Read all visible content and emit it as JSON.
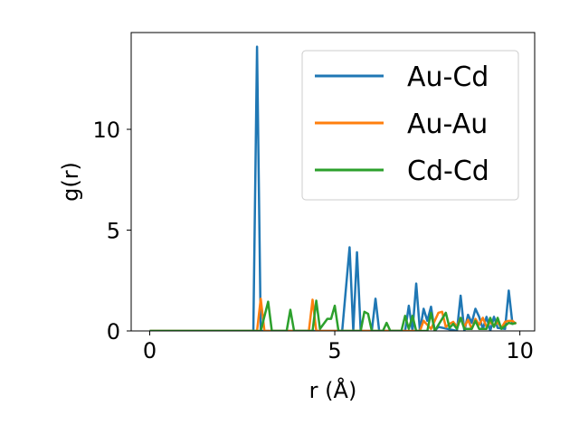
{
  "chart_data": {
    "type": "line",
    "title": "",
    "xlabel": "r (Å)",
    "ylabel": "g(r)",
    "xlim": [
      -0.5,
      10.4
    ],
    "ylim": [
      0,
      14.8
    ],
    "xticks": [
      0,
      5,
      10
    ],
    "yticks": [
      0,
      5,
      10
    ],
    "grid": false,
    "legend_position": "top-right",
    "series": [
      {
        "name": "Au-Cd",
        "color": "#1f77b4",
        "points": [
          [
            0,
            0
          ],
          [
            2.8,
            0
          ],
          [
            2.9,
            14.1
          ],
          [
            3.0,
            0
          ],
          [
            5.2,
            0
          ],
          [
            5.4,
            4.15
          ],
          [
            5.5,
            0
          ],
          [
            5.6,
            3.9
          ],
          [
            5.7,
            0
          ],
          [
            6.0,
            0
          ],
          [
            6.1,
            1.6
          ],
          [
            6.2,
            0
          ],
          [
            6.9,
            0
          ],
          [
            7.0,
            1.25
          ],
          [
            7.1,
            0
          ],
          [
            7.2,
            2.35
          ],
          [
            7.3,
            0
          ],
          [
            7.4,
            1.1
          ],
          [
            7.5,
            0.5
          ],
          [
            7.6,
            1.2
          ],
          [
            7.7,
            0
          ],
          [
            7.8,
            0.2
          ],
          [
            8.3,
            0
          ],
          [
            8.4,
            1.75
          ],
          [
            8.5,
            0
          ],
          [
            8.6,
            0.8
          ],
          [
            8.7,
            0.4
          ],
          [
            8.8,
            1.1
          ],
          [
            8.9,
            0.7
          ],
          [
            9.0,
            0.1
          ],
          [
            9.1,
            0.7
          ],
          [
            9.2,
            0
          ],
          [
            9.3,
            0.7
          ],
          [
            9.4,
            0.15
          ],
          [
            9.6,
            0.1
          ],
          [
            9.7,
            2.0
          ],
          [
            9.8,
            0.35
          ],
          [
            9.9,
            0.4
          ]
        ]
      },
      {
        "name": "Au-Au",
        "color": "#ff7f0e",
        "points": [
          [
            0,
            0
          ],
          [
            2.9,
            0
          ],
          [
            3.0,
            1.6
          ],
          [
            3.1,
            0
          ],
          [
            4.3,
            0
          ],
          [
            4.4,
            1.55
          ],
          [
            4.5,
            0
          ],
          [
            7.3,
            0
          ],
          [
            7.4,
            0.5
          ],
          [
            7.5,
            0.3
          ],
          [
            7.6,
            0.1
          ],
          [
            7.7,
            0.5
          ],
          [
            7.8,
            0.9
          ],
          [
            7.9,
            0.95
          ],
          [
            8.0,
            0.2
          ],
          [
            8.1,
            0.35
          ],
          [
            8.2,
            0.45
          ],
          [
            8.3,
            0.2
          ],
          [
            8.4,
            0.65
          ],
          [
            8.5,
            0.2
          ],
          [
            8.6,
            0.55
          ],
          [
            8.7,
            0.1
          ],
          [
            8.8,
            0.6
          ],
          [
            8.9,
            0.3
          ],
          [
            9.0,
            0.65
          ],
          [
            9.1,
            0.2
          ],
          [
            9.2,
            0.45
          ],
          [
            9.3,
            0.25
          ],
          [
            9.4,
            0.45
          ],
          [
            9.5,
            0.15
          ],
          [
            9.6,
            0.45
          ],
          [
            9.7,
            0.5
          ],
          [
            9.8,
            0.5
          ],
          [
            9.9,
            0.35
          ]
        ]
      },
      {
        "name": "Cd-Cd",
        "color": "#2ca02c",
        "points": [
          [
            0,
            0
          ],
          [
            3.0,
            0
          ],
          [
            3.2,
            1.45
          ],
          [
            3.3,
            0
          ],
          [
            3.7,
            0
          ],
          [
            3.8,
            1.05
          ],
          [
            3.9,
            0
          ],
          [
            4.4,
            0
          ],
          [
            4.5,
            1.5
          ],
          [
            4.6,
            0.1
          ],
          [
            4.8,
            0.6
          ],
          [
            4.9,
            0.6
          ],
          [
            5.0,
            1.25
          ],
          [
            5.1,
            0
          ],
          [
            5.7,
            0
          ],
          [
            5.8,
            0.95
          ],
          [
            5.9,
            0.85
          ],
          [
            6.0,
            0
          ],
          [
            6.3,
            0
          ],
          [
            6.4,
            0.4
          ],
          [
            6.5,
            0
          ],
          [
            6.8,
            0
          ],
          [
            6.9,
            0.75
          ],
          [
            7.0,
            0.1
          ],
          [
            7.1,
            0.75
          ],
          [
            7.2,
            0
          ],
          [
            7.5,
            0
          ],
          [
            7.6,
            0.9
          ],
          [
            7.7,
            0
          ],
          [
            8.0,
            0.9
          ],
          [
            8.1,
            0.15
          ],
          [
            8.2,
            0.35
          ],
          [
            8.3,
            0.1
          ],
          [
            8.4,
            0.65
          ],
          [
            8.5,
            0.1
          ],
          [
            8.7,
            0.1
          ],
          [
            8.8,
            0.5
          ],
          [
            8.9,
            0.1
          ],
          [
            9.1,
            0.1
          ],
          [
            9.2,
            0.65
          ],
          [
            9.3,
            0.2
          ],
          [
            9.4,
            0.65
          ],
          [
            9.5,
            0.1
          ],
          [
            9.6,
            0.25
          ],
          [
            9.7,
            0.4
          ],
          [
            9.8,
            0.35
          ],
          [
            9.9,
            0.4
          ]
        ]
      }
    ]
  }
}
